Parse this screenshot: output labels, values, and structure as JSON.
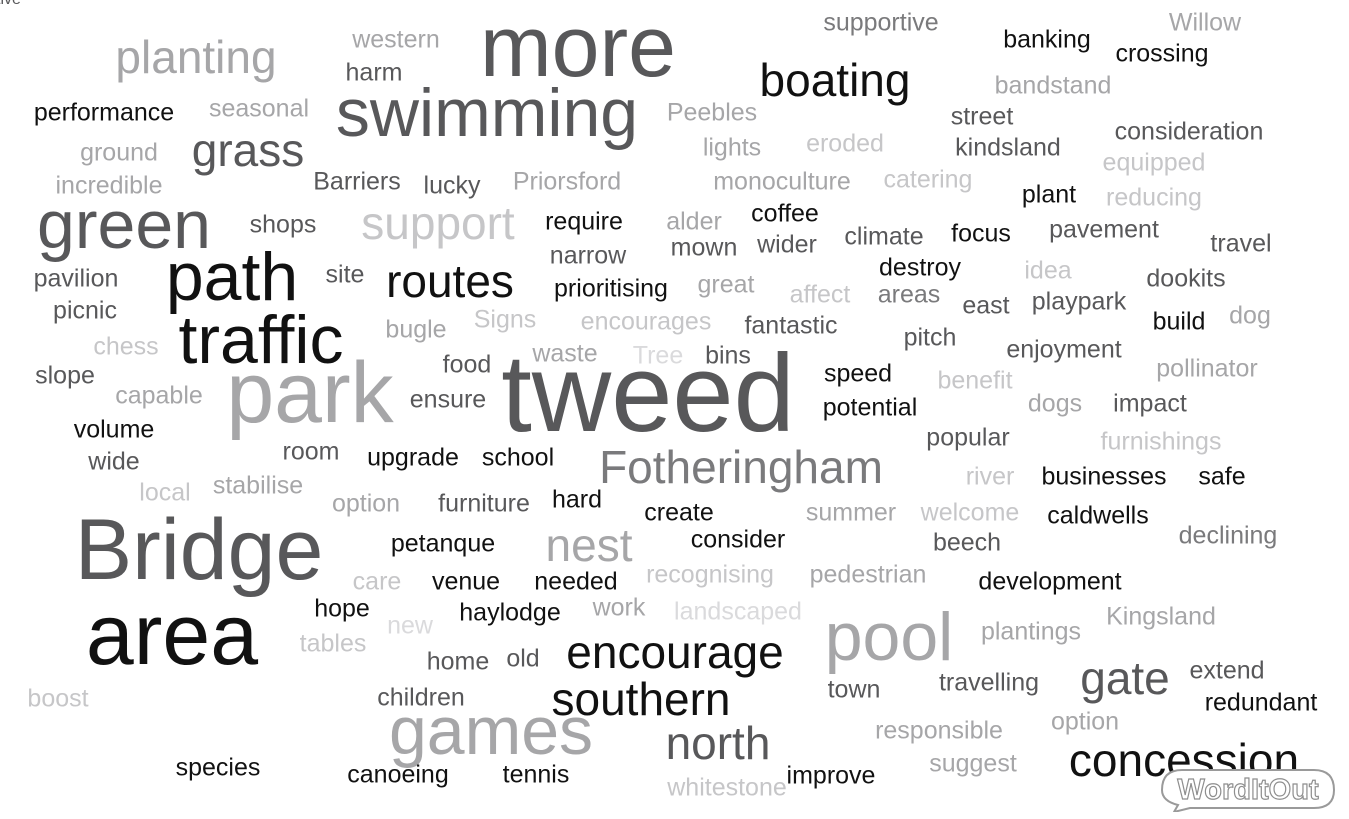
{
  "words": [
    {
      "text": "more",
      "color": "#58585a"
    },
    {
      "text": "swimming",
      "color": "#58585a"
    },
    {
      "text": "planting",
      "color": "#a6a6a8"
    },
    {
      "text": "western",
      "color": "#a6a6a8"
    },
    {
      "text": "harm",
      "color": "#58585a"
    },
    {
      "text": "supportive",
      "color": "#7a7a7c"
    },
    {
      "text": "Willow",
      "color": "#a6a6a8"
    },
    {
      "text": "banking",
      "color": "#111111"
    },
    {
      "text": "crossing",
      "color": "#111111"
    },
    {
      "text": "boating",
      "color": "#111111"
    },
    {
      "text": "bandstand",
      "color": "#a6a6a8"
    },
    {
      "text": "performance",
      "color": "#111111"
    },
    {
      "text": "seasonal",
      "color": "#a6a6a8"
    },
    {
      "text": "Peebles",
      "color": "#a6a6a8"
    },
    {
      "text": "street",
      "color": "#58585a"
    },
    {
      "text": "grass",
      "color": "#58585a"
    },
    {
      "text": "ground",
      "color": "#a6a6a8"
    },
    {
      "text": "lights",
      "color": "#a6a6a8"
    },
    {
      "text": "eroded",
      "color": "#c6c6c8"
    },
    {
      "text": "kindsland",
      "color": "#58585a"
    },
    {
      "text": "consideration",
      "color": "#58585a"
    },
    {
      "text": "equipped",
      "color": "#c6c6c8"
    },
    {
      "text": "incredible",
      "color": "#a6a6a8"
    },
    {
      "text": "Barriers",
      "color": "#58585a"
    },
    {
      "text": "lucky",
      "color": "#58585a"
    },
    {
      "text": "Priorsford",
      "color": "#a6a6a8"
    },
    {
      "text": "monoculture",
      "color": "#a6a6a8"
    },
    {
      "text": "catering",
      "color": "#c6c6c8"
    },
    {
      "text": "plant",
      "color": "#111111"
    },
    {
      "text": "reducing",
      "color": "#c6c6c8"
    },
    {
      "text": "green",
      "color": "#58585a"
    },
    {
      "text": "shops",
      "color": "#58585a"
    },
    {
      "text": "support",
      "color": "#c6c6c8"
    },
    {
      "text": "require",
      "color": "#111111"
    },
    {
      "text": "alder",
      "color": "#a6a6a8"
    },
    {
      "text": "coffee",
      "color": "#111111"
    },
    {
      "text": "climate",
      "color": "#58585a"
    },
    {
      "text": "focus",
      "color": "#111111"
    },
    {
      "text": "pavement",
      "color": "#58585a"
    },
    {
      "text": "narrow",
      "color": "#58585a"
    },
    {
      "text": "mown",
      "color": "#58585a"
    },
    {
      "text": "wider",
      "color": "#58585a"
    },
    {
      "text": "travel",
      "color": "#58585a"
    },
    {
      "text": "path",
      "color": "#111111"
    },
    {
      "text": "pavilion",
      "color": "#58585a"
    },
    {
      "text": "site",
      "color": "#58585a"
    },
    {
      "text": "routes",
      "color": "#111111"
    },
    {
      "text": "destroy",
      "color": "#111111"
    },
    {
      "text": "idea",
      "color": "#c6c6c8"
    },
    {
      "text": "dookits",
      "color": "#58585a"
    },
    {
      "text": "picnic",
      "color": "#58585a"
    },
    {
      "text": "prioritising",
      "color": "#111111"
    },
    {
      "text": "great",
      "color": "#a6a6a8"
    },
    {
      "text": "affect",
      "color": "#c6c6c8"
    },
    {
      "text": "areas",
      "color": "#7a7a7c"
    },
    {
      "text": "east",
      "color": "#58585a"
    },
    {
      "text": "playpark",
      "color": "#58585a"
    },
    {
      "text": "dog",
      "color": "#a6a6a8"
    },
    {
      "text": "traffic",
      "color": "#111111"
    },
    {
      "text": "bugle",
      "color": "#a6a6a8"
    },
    {
      "text": "Signs",
      "color": "#c6c6c8"
    },
    {
      "text": "encourages",
      "color": "#c6c6c8"
    },
    {
      "text": "fantastic",
      "color": "#58585a"
    },
    {
      "text": "build",
      "color": "#111111"
    },
    {
      "text": "chess",
      "color": "#c6c6c8"
    },
    {
      "text": "pitch",
      "color": "#58585a"
    },
    {
      "text": "enjoyment",
      "color": "#58585a"
    },
    {
      "text": "slope",
      "color": "#58585a"
    },
    {
      "text": "food",
      "color": "#58585a"
    },
    {
      "text": "waste",
      "color": "#a6a6a8"
    },
    {
      "text": "Tree",
      "color": "#dadadc"
    },
    {
      "text": "bins",
      "color": "#58585a"
    },
    {
      "text": "pollinator",
      "color": "#a6a6a8"
    },
    {
      "text": "park",
      "color": "#a6a6a8"
    },
    {
      "text": "tweed",
      "color": "#58585a"
    },
    {
      "text": "speed",
      "color": "#111111"
    },
    {
      "text": "benefit",
      "color": "#c6c6c8"
    },
    {
      "text": "capable",
      "color": "#a6a6a8"
    },
    {
      "text": "ensure",
      "color": "#58585a"
    },
    {
      "text": "potential",
      "color": "#111111"
    },
    {
      "text": "dogs",
      "color": "#a6a6a8"
    },
    {
      "text": "impact",
      "color": "#58585a"
    },
    {
      "text": "volume",
      "color": "#111111"
    },
    {
      "text": "popular",
      "color": "#58585a"
    },
    {
      "text": "furnishings",
      "color": "#c6c6c8"
    },
    {
      "text": "wide",
      "color": "#58585a"
    },
    {
      "text": "room",
      "color": "#58585a"
    },
    {
      "text": "upgrade",
      "color": "#111111"
    },
    {
      "text": "school",
      "color": "#111111"
    },
    {
      "text": "Fotheringham",
      "color": "#7a7a7c"
    },
    {
      "text": "river",
      "color": "#c6c6c8"
    },
    {
      "text": "businesses",
      "color": "#111111"
    },
    {
      "text": "safe",
      "color": "#111111"
    },
    {
      "text": "local",
      "color": "#c6c6c8"
    },
    {
      "text": "stabilise",
      "color": "#a6a6a8"
    },
    {
      "text": "option",
      "color": "#a6a6a8"
    },
    {
      "text": "furniture",
      "color": "#58585a"
    },
    {
      "text": "hard",
      "color": "#111111"
    },
    {
      "text": "create",
      "color": "#111111"
    },
    {
      "text": "summer",
      "color": "#a6a6a8"
    },
    {
      "text": "welcome",
      "color": "#c6c6c8"
    },
    {
      "text": "caldwells",
      "color": "#111111"
    },
    {
      "text": "Bridge",
      "color": "#58585a"
    },
    {
      "text": "nest",
      "color": "#a6a6a8"
    },
    {
      "text": "petanque",
      "color": "#111111"
    },
    {
      "text": "consider",
      "color": "#111111"
    },
    {
      "text": "beech",
      "color": "#58585a"
    },
    {
      "text": "declining",
      "color": "#7a7a7c"
    },
    {
      "text": "care",
      "color": "#c6c6c8"
    },
    {
      "text": "venue",
      "color": "#111111"
    },
    {
      "text": "needed",
      "color": "#111111"
    },
    {
      "text": "recognising",
      "color": "#c6c6c8"
    },
    {
      "text": "pedestrian",
      "color": "#a6a6a8"
    },
    {
      "text": "development",
      "color": "#111111"
    },
    {
      "text": "area",
      "color": "#111111"
    },
    {
      "text": "hope",
      "color": "#111111"
    },
    {
      "text": "new",
      "color": "#dadadc"
    },
    {
      "text": "haylodge",
      "color": "#111111"
    },
    {
      "text": "work",
      "color": "#a6a6a8"
    },
    {
      "text": "landscaped",
      "color": "#dadadc"
    },
    {
      "text": "pool",
      "color": "#a6a6a8"
    },
    {
      "text": "plantings",
      "color": "#a6a6a8"
    },
    {
      "text": "Kingsland",
      "color": "#a6a6a8"
    },
    {
      "text": "tables",
      "color": "#c6c6c8"
    },
    {
      "text": "home",
      "color": "#58585a"
    },
    {
      "text": "old",
      "color": "#58585a"
    },
    {
      "text": "encourage",
      "color": "#111111"
    },
    {
      "text": "gate",
      "color": "#58585a"
    },
    {
      "text": "extend",
      "color": "#58585a"
    },
    {
      "text": "boost",
      "color": "#c6c6c8"
    },
    {
      "text": "children",
      "color": "#58585a"
    },
    {
      "text": "southern",
      "color": "#111111"
    },
    {
      "text": "town",
      "color": "#58585a"
    },
    {
      "text": "travelling",
      "color": "#58585a"
    },
    {
      "text": "redundant",
      "color": "#111111"
    },
    {
      "text": "games",
      "color": "#a6a6a8"
    },
    {
      "text": "north",
      "color": "#58585a"
    },
    {
      "text": "responsible",
      "color": "#a6a6a8"
    },
    {
      "text": "option",
      "color": "#a6a6a8"
    },
    {
      "text": "concession",
      "color": "#111111"
    },
    {
      "text": "species",
      "color": "#111111"
    },
    {
      "text": "canoeing",
      "color": "#111111"
    },
    {
      "text": "tennis",
      "color": "#111111"
    },
    {
      "text": "improve",
      "color": "#111111"
    },
    {
      "text": "suggest",
      "color": "#a6a6a8"
    },
    {
      "text": "whitestone",
      "color": "#c6c6c8"
    },
    {
      "text": "active",
      "color": "#58585a"
    }
  ],
  "logo": {
    "text": "WordItOut"
  }
}
